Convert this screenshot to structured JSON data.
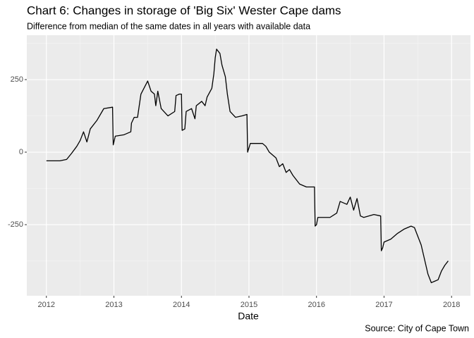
{
  "chart_data": {
    "type": "line",
    "title": "Chart 6: Changes in storage of 'Big Six' Wester Cape dams",
    "subtitle": "Difference from median of the same dates in all years with available data",
    "x_label": "Date",
    "caption": "Source: City of Cape Town",
    "color": "#000000",
    "grid": true,
    "xlim": [
      2011.71,
      2018.28
    ],
    "xticks": [
      2012,
      2013,
      2014,
      2015,
      2016,
      2017,
      2018
    ],
    "ylim": [
      -495,
      403
    ],
    "yticks": [
      250,
      0,
      -250
    ],
    "x": [
      2012.0,
      2012.2,
      2012.3,
      2012.37,
      2012.45,
      2012.5,
      2012.55,
      2012.6,
      2012.65,
      2012.75,
      2012.85,
      2012.98,
      2012.99,
      2013.02,
      2013.15,
      2013.25,
      2013.26,
      2013.3,
      2013.35,
      2013.4,
      2013.5,
      2013.55,
      2013.6,
      2013.62,
      2013.65,
      2013.7,
      2013.8,
      2013.9,
      2013.92,
      2013.97,
      2014.0,
      2014.01,
      2014.05,
      2014.07,
      2014.15,
      2014.2,
      2014.22,
      2014.3,
      2014.35,
      2014.38,
      2014.45,
      2014.48,
      2014.5,
      2014.52,
      2014.57,
      2014.6,
      2014.65,
      2014.68,
      2014.72,
      2014.8,
      2014.9,
      2014.97,
      2014.98,
      2015.02,
      2015.2,
      2015.25,
      2015.3,
      2015.4,
      2015.45,
      2015.5,
      2015.55,
      2015.6,
      2015.65,
      2015.75,
      2015.85,
      2015.97,
      2015.98,
      2016.0,
      2016.02,
      2016.2,
      2016.3,
      2016.35,
      2016.45,
      2016.5,
      2016.55,
      2016.6,
      2016.65,
      2016.7,
      2016.85,
      2016.95,
      2016.96,
      2016.98,
      2017.0,
      2017.1,
      2017.2,
      2017.3,
      2017.4,
      2017.45,
      2017.5,
      2017.55,
      2017.6,
      2017.65,
      2017.7,
      2017.75,
      2017.8,
      2017.85,
      2017.9,
      2017.95
    ],
    "values": [
      -30,
      -30,
      -25,
      -5,
      20,
      40,
      70,
      35,
      80,
      110,
      150,
      155,
      25,
      55,
      60,
      70,
      100,
      120,
      120,
      200,
      245,
      210,
      200,
      160,
      210,
      150,
      125,
      140,
      195,
      200,
      200,
      75,
      80,
      140,
      150,
      115,
      160,
      175,
      160,
      190,
      220,
      270,
      325,
      355,
      340,
      300,
      260,
      200,
      140,
      120,
      125,
      130,
      0,
      30,
      30,
      20,
      0,
      -20,
      -50,
      -40,
      -70,
      -60,
      -80,
      -110,
      -120,
      -120,
      -255,
      -250,
      -225,
      -225,
      -210,
      -170,
      -180,
      -155,
      -200,
      -160,
      -220,
      -225,
      -215,
      -220,
      -340,
      -330,
      -310,
      -300,
      -280,
      -265,
      -255,
      -260,
      -290,
      -320,
      -370,
      -420,
      -450,
      -445,
      -440,
      -410,
      -390,
      -375
    ]
  }
}
